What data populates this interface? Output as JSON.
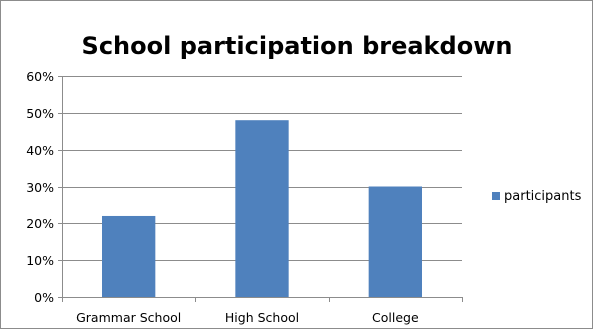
{
  "chart_data": {
    "type": "bar",
    "title": "School participation breakdown",
    "xlabel": "",
    "ylabel": "",
    "categories": [
      "Grammar School",
      "High School",
      "College"
    ],
    "series": [
      {
        "name": "participants",
        "values": [
          0.22,
          0.48,
          0.3
        ]
      }
    ],
    "ylim": [
      0,
      0.6
    ],
    "yticks": [
      0,
      0.1,
      0.2,
      0.3,
      0.4,
      0.5,
      0.6
    ],
    "ytick_labels": [
      "0%",
      "10%",
      "20%",
      "30%",
      "40%",
      "50%",
      "60%"
    ],
    "grid": true,
    "legend_position": "right",
    "colors": {
      "bar": "#4f81bd",
      "grid": "#8c8c8c",
      "axis": "#8c8c8c"
    }
  }
}
